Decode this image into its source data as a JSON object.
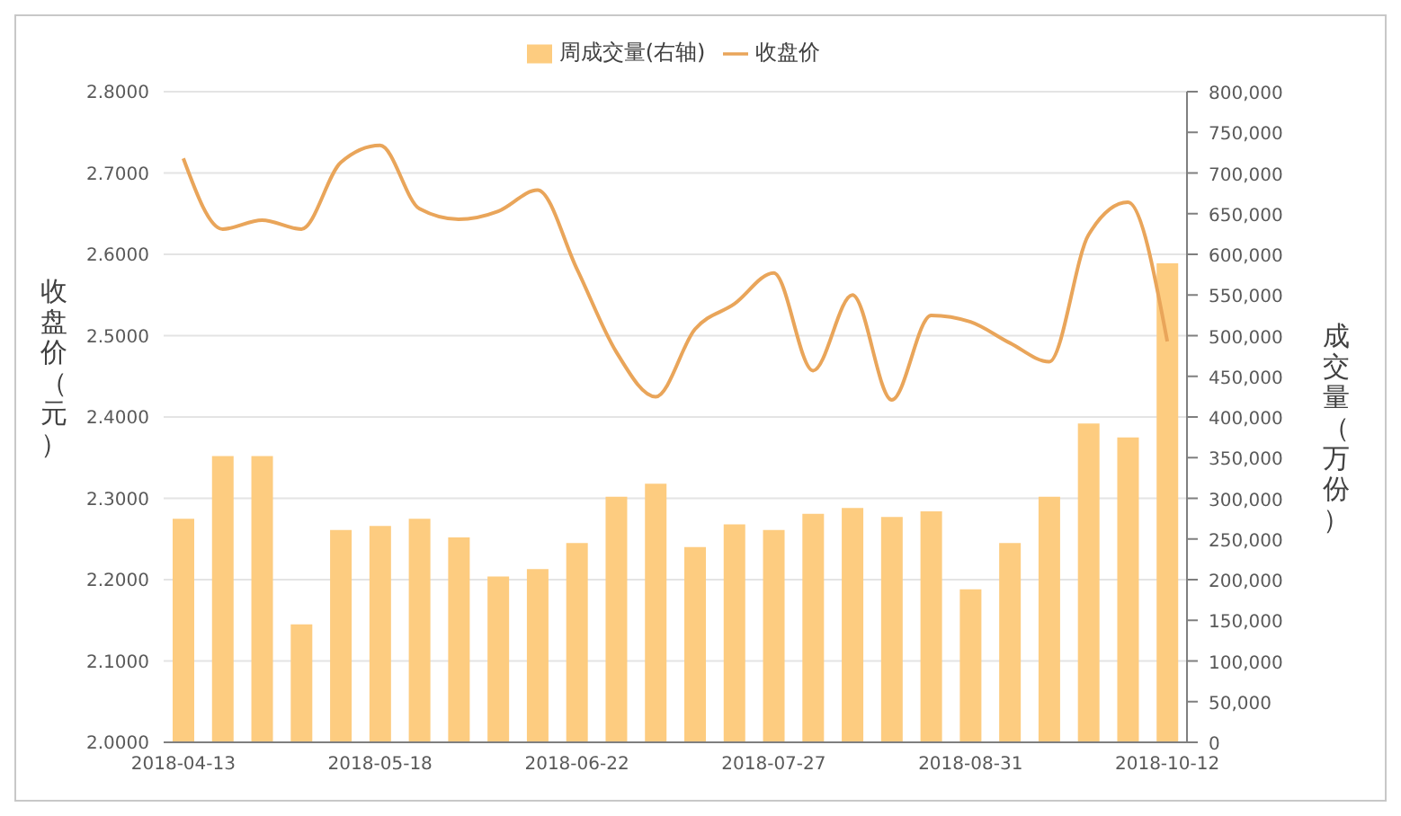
{
  "chart_data": {
    "type": "bar",
    "ylabel": "收盘价（元）",
    "y2label": "成交量（万份）",
    "categories": [
      "2018-04-13",
      null,
      null,
      null,
      null,
      "2018-05-18",
      null,
      null,
      null,
      null,
      "2018-06-22",
      null,
      null,
      null,
      null,
      "2018-07-27",
      null,
      null,
      null,
      null,
      "2018-08-31",
      null,
      null,
      null,
      null,
      "2018-10-12"
    ],
    "series": [
      {
        "name": "周成交量(右轴)",
        "axis": "y2",
        "color": "#fdcc80",
        "values": [
          275000,
          352000,
          352000,
          145000,
          261000,
          266000,
          275000,
          252000,
          204000,
          213000,
          245000,
          302000,
          318000,
          240000,
          268000,
          261000,
          281000,
          288000,
          277000,
          284000,
          188000,
          245000,
          302000,
          392000,
          375000,
          589000
        ]
      },
      {
        "name": "收盘价",
        "type": "line",
        "color": "#e9a55a",
        "values": [
          2.718,
          2.631,
          2.642,
          2.631,
          2.713,
          2.734,
          2.656,
          2.643,
          2.653,
          2.679,
          2.582,
          2.48,
          2.425,
          2.508,
          2.539,
          2.577,
          2.457,
          2.55,
          2.421,
          2.525,
          2.517,
          2.491,
          2.468,
          2.624,
          2.664,
          2.493
        ]
      }
    ],
    "ylim": [
      2.0,
      2.8
    ],
    "yticks": [
      {
        "value": 2.0,
        "label": "2.0000"
      },
      {
        "value": 2.1,
        "label": "2.1000"
      },
      {
        "value": 2.2,
        "label": "2.2000"
      },
      {
        "value": 2.3,
        "label": "2.3000"
      },
      {
        "value": 2.4,
        "label": "2.4000"
      },
      {
        "value": 2.5,
        "label": "2.5000"
      },
      {
        "value": 2.6,
        "label": "2.6000"
      },
      {
        "value": 2.7,
        "label": "2.7000"
      },
      {
        "value": 2.8,
        "label": "2.8000"
      }
    ],
    "y2lim": [
      0,
      800000
    ],
    "y2ticks": [
      0,
      {
        "value": 50000,
        "label": "50,000"
      },
      {
        "value": 100000,
        "label": "100,000"
      },
      {
        "value": 150000,
        "label": "150,000"
      },
      {
        "value": 200000,
        "label": "200,000"
      },
      {
        "value": 250000,
        "label": "250,000"
      },
      {
        "value": 300000,
        "label": "300,000"
      },
      {
        "value": 350000,
        "label": "350,000"
      },
      {
        "value": 400000,
        "label": "400,000"
      },
      {
        "value": 450000,
        "label": "450,000"
      },
      {
        "value": 500000,
        "label": "500,000"
      },
      {
        "value": 550000,
        "label": "550,000"
      },
      {
        "value": 600000,
        "label": "600,000"
      },
      {
        "value": 650000,
        "label": "650,000"
      },
      {
        "value": 700000,
        "label": "700,000"
      },
      {
        "value": 750000,
        "label": "750,000"
      },
      {
        "value": 800000,
        "label": "800,000"
      }
    ],
    "grid": "y",
    "legend": "top"
  }
}
